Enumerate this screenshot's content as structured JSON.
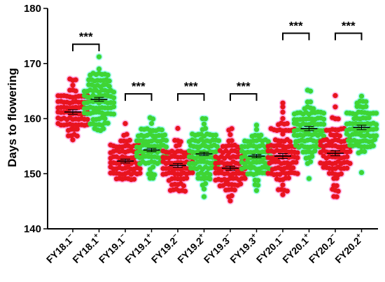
{
  "chart_data": {
    "type": "scatter",
    "title": "",
    "xlabel": "",
    "ylabel": "Days to flowering",
    "ylim": [
      140,
      180
    ],
    "yticks": [
      140,
      150,
      160,
      170,
      180
    ],
    "grid": false,
    "legend": "none",
    "categories": [
      {
        "name": "FY18.1",
        "sup": "−",
        "mean": 161.2,
        "min": 156,
        "max": 167,
        "sem": 0.4,
        "dots": "red"
      },
      {
        "name": "FY18.1",
        "sup": "+",
        "mean": 163.5,
        "min": 158,
        "max": 171,
        "sem": 0.35,
        "dots": "green"
      },
      {
        "name": "FY19.1",
        "sup": "−",
        "mean": 152.3,
        "min": 149,
        "max": 159,
        "sem": 0.35,
        "dots": "red"
      },
      {
        "name": "FY19.1",
        "sup": "+",
        "mean": 154.3,
        "min": 149,
        "max": 160,
        "sem": 0.3,
        "dots": "green"
      },
      {
        "name": "FY19.2",
        "sup": "−",
        "mean": 151.5,
        "min": 147,
        "max": 158,
        "sem": 0.35,
        "dots": "red"
      },
      {
        "name": "FY19.2",
        "sup": "+",
        "mean": 153.6,
        "min": 146,
        "max": 160,
        "sem": 0.3,
        "dots": "green"
      },
      {
        "name": "FY19.3",
        "sup": "−",
        "mean": 151.0,
        "min": 145,
        "max": 158,
        "sem": 0.35,
        "dots": "red"
      },
      {
        "name": "FY19.3",
        "sup": "+",
        "mean": 153.2,
        "min": 147,
        "max": 159,
        "sem": 0.3,
        "dots": "green"
      },
      {
        "name": "FY20.1",
        "sup": "−",
        "mean": 153.2,
        "min": 146,
        "max": 163,
        "sem": 0.45,
        "dots": "red"
      },
      {
        "name": "FY20.1",
        "sup": "+",
        "mean": 158.2,
        "min": 149,
        "max": 165,
        "sem": 0.4,
        "dots": "green"
      },
      {
        "name": "FY20.2",
        "sup": "−",
        "mean": 153.7,
        "min": 146,
        "max": 164,
        "sem": 0.45,
        "dots": "red"
      },
      {
        "name": "FY20.2",
        "sup": "+",
        "mean": 158.4,
        "min": 150,
        "max": 164,
        "sem": 0.4,
        "dots": "green"
      }
    ],
    "significance": [
      {
        "pair": [
          0,
          1
        ],
        "label": "***",
        "y": 173.5
      },
      {
        "pair": [
          2,
          3
        ],
        "label": "***",
        "y": 164.5
      },
      {
        "pair": [
          4,
          5
        ],
        "label": "***",
        "y": 164.5
      },
      {
        "pair": [
          6,
          7
        ],
        "label": "***",
        "y": 164.5
      },
      {
        "pair": [
          8,
          9
        ],
        "label": "***",
        "y": 175.5
      },
      {
        "pair": [
          10,
          11
        ],
        "label": "***",
        "y": 175.5
      }
    ],
    "colors": {
      "red_dot": "#e8141e",
      "red_halo": "#ff7ad6",
      "green_dot": "#3fd534",
      "green_halo": "#5ef7e6",
      "mean_line": "#000000"
    }
  }
}
